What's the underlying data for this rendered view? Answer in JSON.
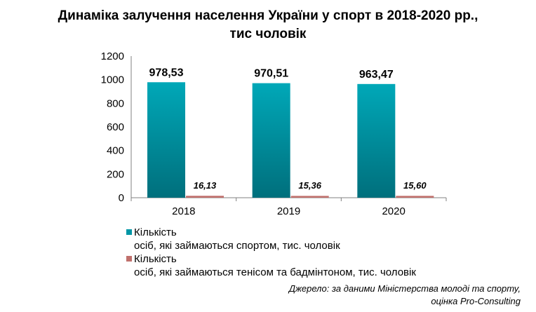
{
  "chart_data": {
    "type": "bar",
    "title_line1": "Динаміка залучення населення України у спорт в 2018-2020 рр.,",
    "title_line2": "тис чоловік",
    "categories": [
      "2018",
      "2019",
      "2020"
    ],
    "series": [
      {
        "name_line1": "Кількість",
        "name_line2": "осіб, які займаються спортом, тис. чоловік",
        "values": [
          978.53,
          970.51,
          963.47
        ],
        "labels": [
          "978,53",
          "970,51",
          "963,47"
        ],
        "color": "#0096a6"
      },
      {
        "name_line1": "Кількість",
        "name_line2": "осіб, які займаються тенісом та бадмінтоном,  тис. чоловік",
        "values": [
          16.13,
          15.36,
          15.6
        ],
        "labels": [
          "16,13",
          "15,36",
          "15,60"
        ],
        "color": "#c0706c"
      }
    ],
    "ylim": [
      0,
      1200
    ],
    "yticks": [
      "0",
      "200",
      "400",
      "600",
      "800",
      "1000",
      "1200"
    ],
    "ytick_values": [
      0,
      200,
      400,
      600,
      800,
      1000,
      1200
    ],
    "grid": false,
    "legend_position": "bottom-left"
  },
  "source": {
    "line1": "Джерело: за даними Міністерства молоді та спорту,",
    "line2": "оцінка Pro-Consulting"
  }
}
